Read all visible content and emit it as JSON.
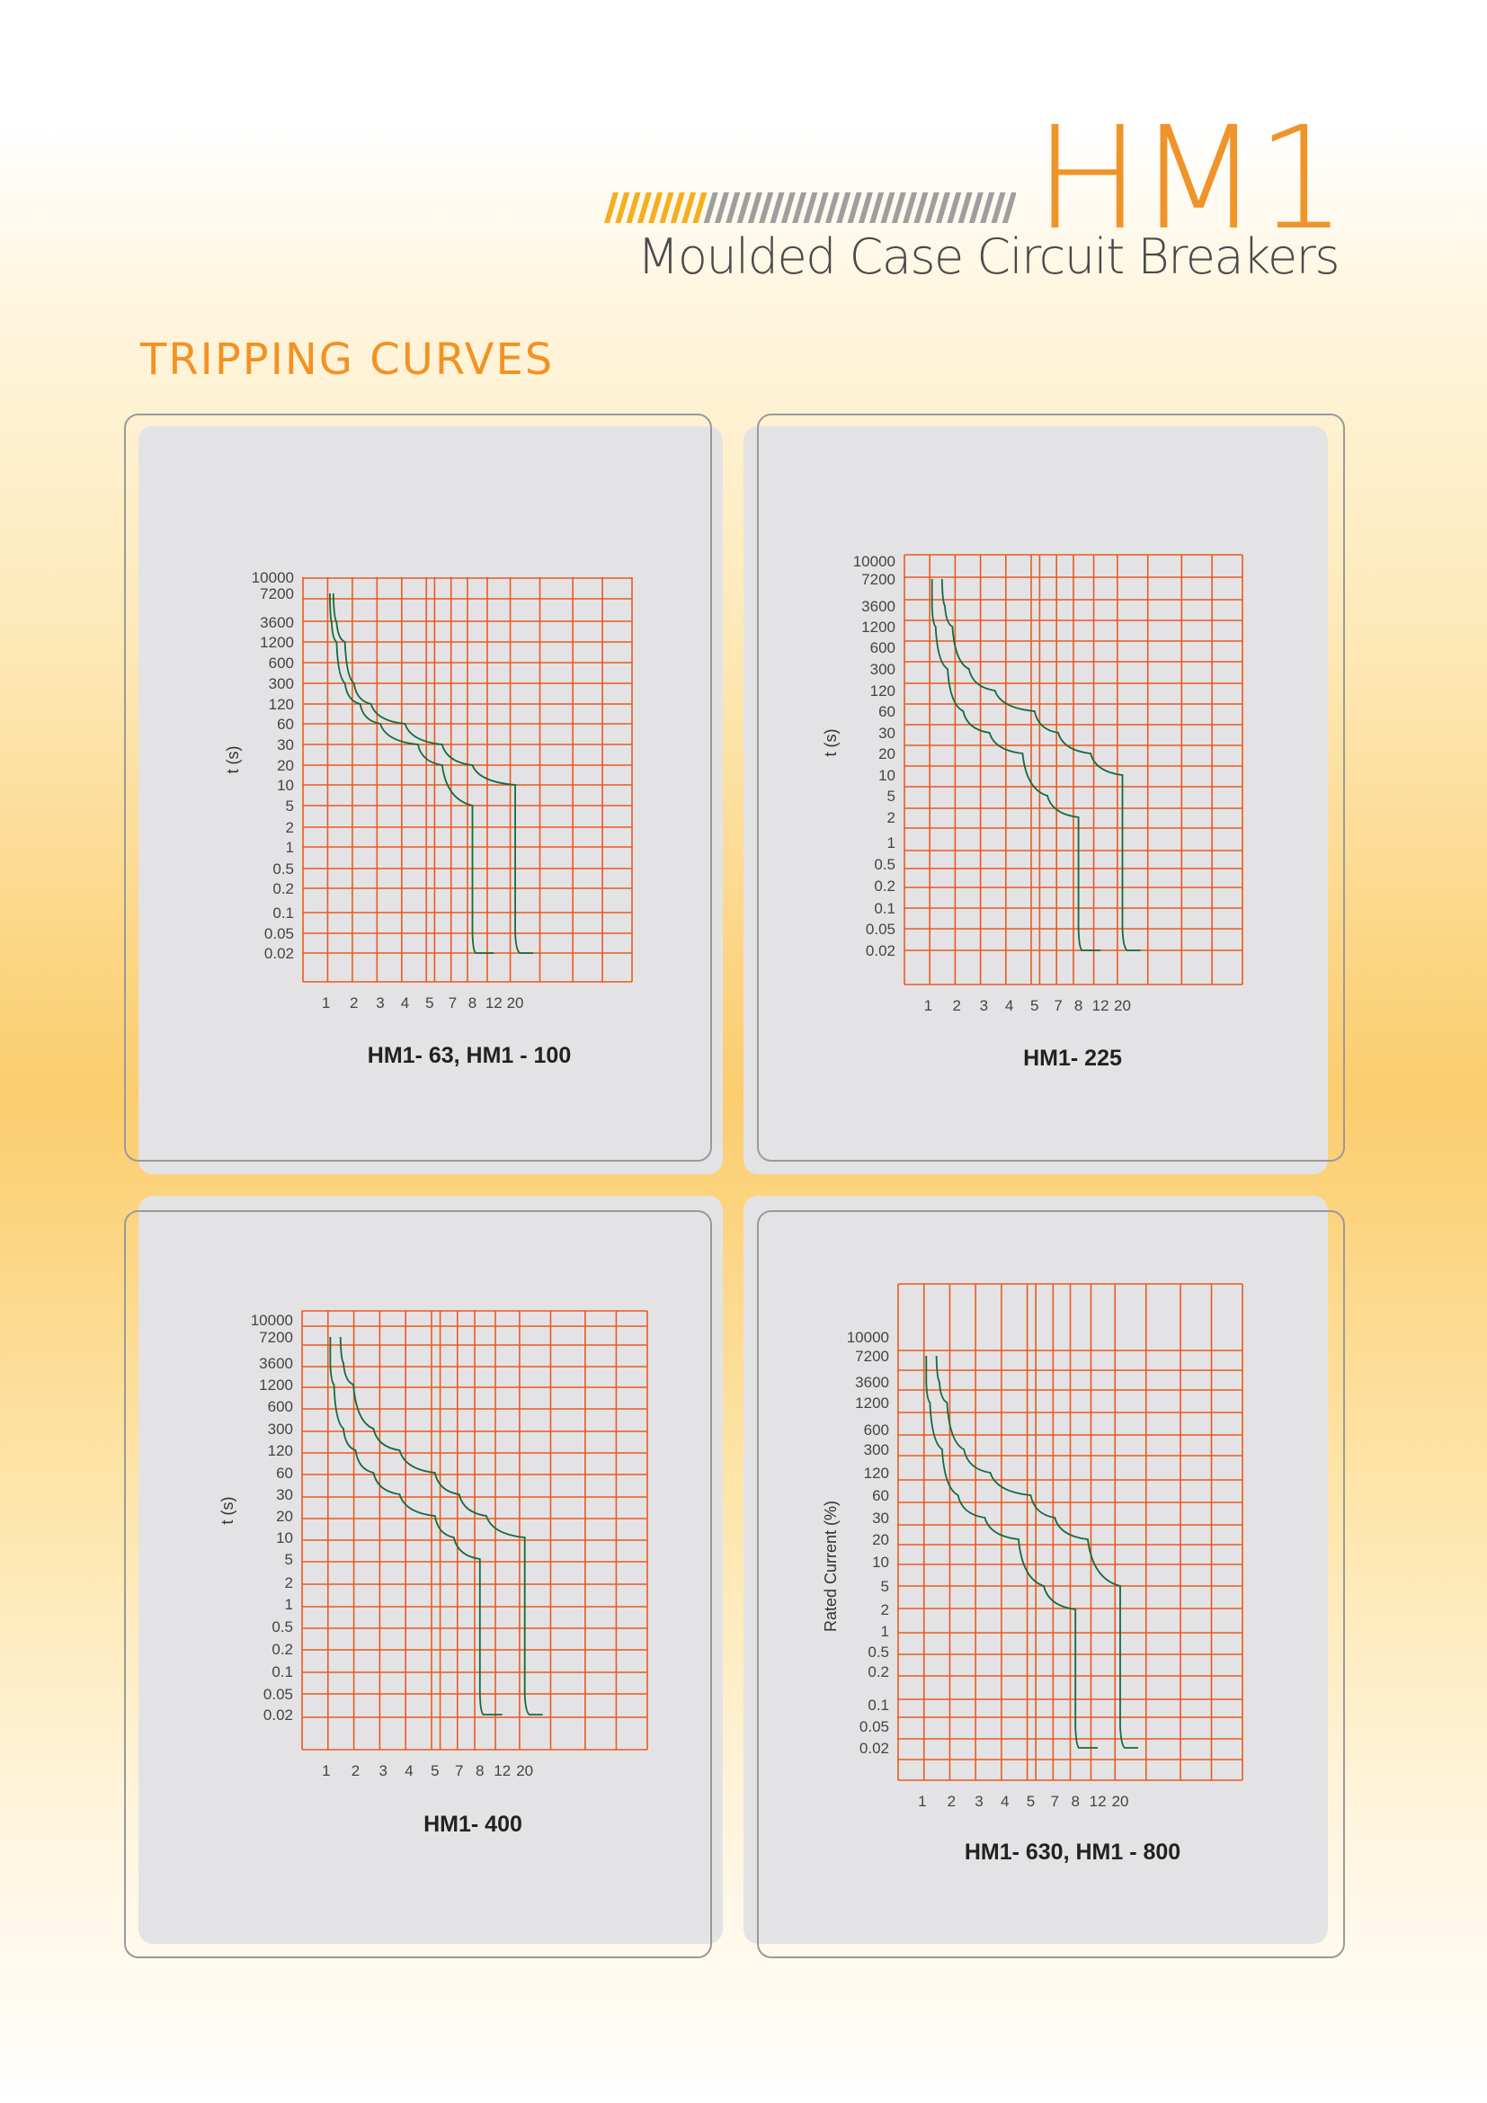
{
  "header": {
    "brand": "HM1",
    "subtitle": "Moulded Case Circuit Breakers",
    "section_title": "TRIPPING CURVES"
  },
  "colors": {
    "accent": "#f0942a",
    "grid": "#ea5a1f",
    "curve": "#156a3e",
    "panel": "#e3e3e5"
  },
  "chart_data": [
    {
      "type": "line",
      "title": "HM1- 63, HM1 - 100",
      "ylabel": "t (s)",
      "xlabel": "",
      "x_ticks": [
        "1",
        "2",
        "3",
        "4",
        "5",
        "7",
        "8",
        "12",
        "20"
      ],
      "y_ticks": [
        "10000",
        "7200",
        "3600",
        "1200",
        "600",
        "300",
        "120",
        "60",
        "30",
        "20",
        "10",
        "5",
        "2",
        "1",
        "0.5",
        "0.2",
        "0.1",
        "0.05",
        "0.02"
      ],
      "y_scale": "categorical-log",
      "series": [
        {
          "values": [
            [
              1.1,
              7200
            ],
            [
              1.15,
              3600
            ],
            [
              1.3,
              1200
            ],
            [
              1.6,
              300
            ],
            [
              2.2,
              120
            ],
            [
              3,
              60
            ],
            [
              4.5,
              30
            ],
            [
              6,
              20
            ],
            [
              8,
              5
            ],
            [
              8,
              0.05
            ],
            [
              8.5,
              0.02
            ],
            [
              12,
              0.02
            ]
          ]
        },
        {
          "values": [
            [
              1.2,
              7200
            ],
            [
              1.3,
              3600
            ],
            [
              1.6,
              1200
            ],
            [
              2,
              300
            ],
            [
              2.6,
              120
            ],
            [
              4,
              60
            ],
            [
              6,
              30
            ],
            [
              8,
              20
            ],
            [
              20,
              10
            ],
            [
              20,
              0.05
            ],
            [
              20.5,
              0.02
            ],
            [
              22,
              0.02
            ]
          ]
        }
      ]
    },
    {
      "type": "line",
      "title": "HM1- 225",
      "ylabel": "t (s)",
      "xlabel": "",
      "x_ticks": [
        "1",
        "2",
        "3",
        "4",
        "5",
        "7",
        "8",
        "12",
        "20"
      ],
      "y_ticks": [
        "10000",
        "7200",
        "3600",
        "1200",
        "600",
        "300",
        "120",
        "60",
        "30",
        "20",
        "10",
        "5",
        "2",
        "1",
        "0.5",
        "0.2",
        "0.1",
        "0.05",
        "0.02"
      ],
      "y_scale": "categorical-log",
      "series": [
        {
          "values": [
            [
              1.1,
              7200
            ],
            [
              1.1,
              3600
            ],
            [
              1.2,
              1200
            ],
            [
              1.6,
              300
            ],
            [
              2.2,
              60
            ],
            [
              3.2,
              30
            ],
            [
              4.5,
              20
            ],
            [
              6,
              5
            ],
            [
              8,
              2
            ],
            [
              8,
              0.05
            ],
            [
              8.5,
              0.02
            ],
            [
              12,
              0.02
            ]
          ]
        },
        {
          "values": [
            [
              1.4,
              7200
            ],
            [
              1.5,
              3600
            ],
            [
              1.8,
              1200
            ],
            [
              2.4,
              300
            ],
            [
              3.4,
              120
            ],
            [
              5,
              60
            ],
            [
              7,
              30
            ],
            [
              10,
              20
            ],
            [
              20,
              10
            ],
            [
              20,
              0.05
            ],
            [
              20.5,
              0.02
            ],
            [
              22,
              0.02
            ]
          ]
        }
      ]
    },
    {
      "type": "line",
      "title": "HM1- 400",
      "ylabel": "t (s)",
      "xlabel": "",
      "x_ticks": [
        "1",
        "2",
        "3",
        "4",
        "5",
        "7",
        "8",
        "12",
        "20"
      ],
      "y_ticks": [
        "10000",
        "7200",
        "3600",
        "1200",
        "600",
        "300",
        "120",
        "60",
        "30",
        "20",
        "10",
        "5",
        "2",
        "1",
        "0.5",
        "0.2",
        "0.1",
        "0.05",
        "0.02"
      ],
      "y_scale": "categorical-log",
      "series": [
        {
          "values": [
            [
              1.1,
              7200
            ],
            [
              1.1,
              3600
            ],
            [
              1.2,
              1200
            ],
            [
              1.5,
              300
            ],
            [
              2,
              120
            ],
            [
              2.6,
              60
            ],
            [
              3.6,
              30
            ],
            [
              5,
              20
            ],
            [
              6.5,
              10
            ],
            [
              8,
              5
            ],
            [
              8,
              0.05
            ],
            [
              8.5,
              0.02
            ],
            [
              12,
              0.02
            ]
          ]
        },
        {
          "values": [
            [
              1.4,
              7200
            ],
            [
              1.5,
              3600
            ],
            [
              1.9,
              1200
            ],
            [
              2.6,
              300
            ],
            [
              3.6,
              120
            ],
            [
              5,
              60
            ],
            [
              7,
              30
            ],
            [
              9,
              20
            ],
            [
              20,
              10
            ],
            [
              20,
              0.05
            ],
            [
              20.5,
              0.02
            ],
            [
              22,
              0.02
            ]
          ]
        }
      ]
    },
    {
      "type": "line",
      "title": "HM1- 630, HM1 - 800",
      "ylabel": "Rated Current (%)",
      "xlabel": "",
      "x_ticks": [
        "1",
        "2",
        "3",
        "4",
        "5",
        "7",
        "8",
        "12",
        "20"
      ],
      "y_ticks": [
        "10000",
        "7200",
        "3600",
        "1200",
        "600",
        "300",
        "120",
        "60",
        "30",
        "20",
        "10",
        "5",
        "2",
        "1",
        "0.5",
        "0.2",
        "0.1",
        "0.05",
        "0.02"
      ],
      "y_scale": "categorical-log",
      "series": [
        {
          "values": [
            [
              1.1,
              7200
            ],
            [
              1.1,
              3600
            ],
            [
              1.2,
              1200
            ],
            [
              1.6,
              300
            ],
            [
              2.2,
              60
            ],
            [
              3.2,
              30
            ],
            [
              4.5,
              20
            ],
            [
              6,
              5
            ],
            [
              8,
              2
            ],
            [
              8,
              0.05
            ],
            [
              8.5,
              0.02
            ],
            [
              12,
              0.02
            ]
          ]
        },
        {
          "values": [
            [
              1.4,
              7200
            ],
            [
              1.5,
              3600
            ],
            [
              1.8,
              1200
            ],
            [
              2.4,
              300
            ],
            [
              3.4,
              120
            ],
            [
              5,
              60
            ],
            [
              7,
              30
            ],
            [
              10,
              20
            ],
            [
              20,
              5
            ],
            [
              20,
              0.05
            ],
            [
              20.5,
              0.02
            ],
            [
              22,
              0.02
            ]
          ]
        }
      ]
    }
  ]
}
